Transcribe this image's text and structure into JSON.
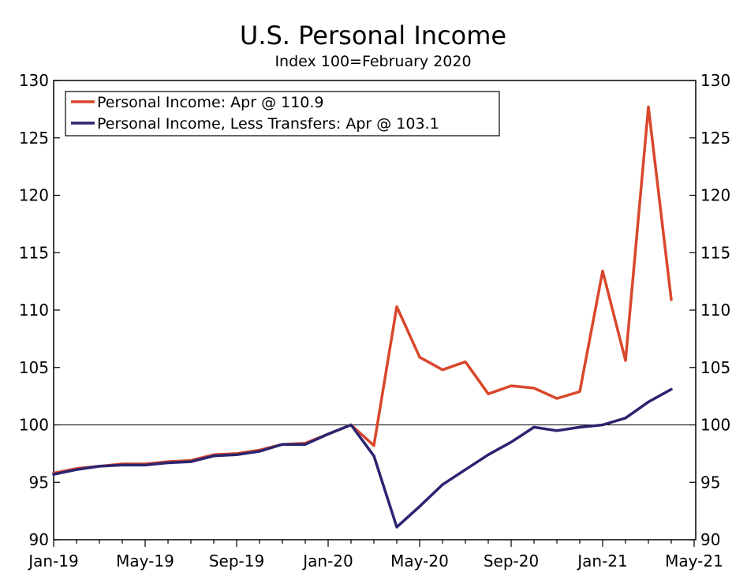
{
  "chart_data": {
    "type": "line",
    "title": "U.S. Personal Income",
    "subtitle": "Index 100=February 2020",
    "xlabel": "",
    "ylabel": "",
    "ylim": [
      90,
      130
    ],
    "yticks": [
      90,
      95,
      100,
      105,
      110,
      115,
      120,
      125,
      130
    ],
    "reference_line": 100,
    "legend_position": "top-left",
    "x_tick_labels": [
      "Jan-19",
      "May-19",
      "Sep-19",
      "Jan-20",
      "May-20",
      "Sep-20",
      "Jan-21",
      "May-21"
    ],
    "x_months": [
      "Jan-19",
      "Feb-19",
      "Mar-19",
      "Apr-19",
      "May-19",
      "Jun-19",
      "Jul-19",
      "Aug-19",
      "Sep-19",
      "Oct-19",
      "Nov-19",
      "Dec-19",
      "Jan-20",
      "Feb-20",
      "Mar-20",
      "Apr-20",
      "May-20",
      "Jun-20",
      "Jul-20",
      "Aug-20",
      "Sep-20",
      "Oct-20",
      "Nov-20",
      "Dec-20",
      "Jan-21",
      "Feb-21",
      "Mar-21",
      "Apr-21"
    ],
    "series": [
      {
        "name": "Personal Income: Apr @ 110.9",
        "color": "#d9472b",
        "values": [
          95.8,
          96.2,
          96.4,
          96.6,
          96.6,
          96.8,
          96.9,
          97.4,
          97.5,
          97.8,
          98.3,
          98.4,
          99.2,
          100.0,
          98.2,
          110.3,
          105.9,
          104.8,
          105.5,
          102.7,
          103.4,
          103.2,
          102.3,
          102.9,
          113.4,
          105.6,
          127.7,
          110.9
        ]
      },
      {
        "name": "Personal Income, Less Transfers: Apr @ 103.1",
        "color": "#2b2470",
        "values": [
          95.7,
          96.1,
          96.4,
          96.5,
          96.5,
          96.7,
          96.8,
          97.3,
          97.4,
          97.7,
          98.3,
          98.3,
          99.2,
          100.0,
          97.3,
          91.1,
          92.9,
          94.8,
          96.1,
          97.4,
          98.5,
          99.8,
          99.5,
          99.8,
          100.0,
          100.6,
          102.0,
          103.1
        ]
      }
    ]
  }
}
